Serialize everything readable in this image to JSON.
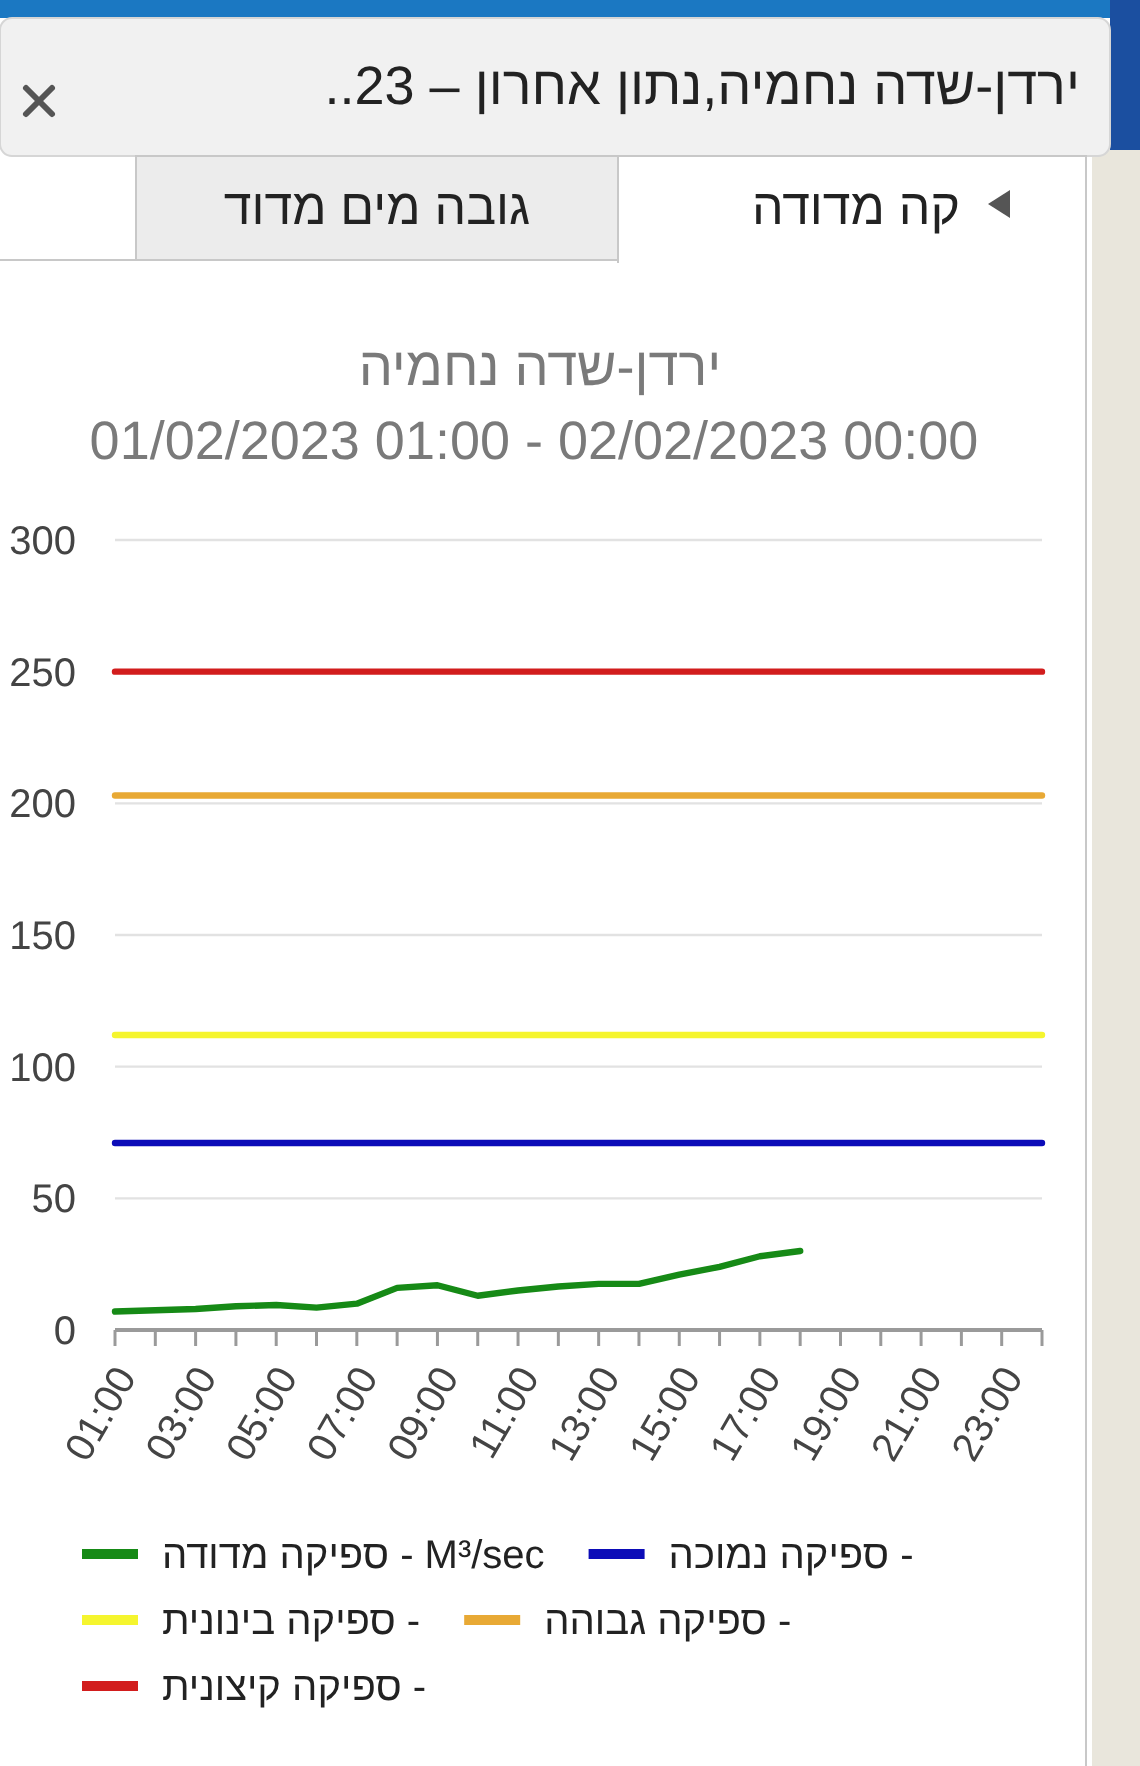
{
  "chart_data": {
    "type": "line",
    "title": "ירדן-שדה נחמיה",
    "subtitle": "01/02/2023 01:00 - 02/02/2023 00:00",
    "annotations": [
      "ירדן-שדה נחמיה,נתון אחרון – 23..",
      "קה מדודה",
      "גובה מים מדוד"
    ],
    "x": [
      1,
      2,
      3,
      4,
      5,
      6,
      7,
      8,
      9,
      10,
      11,
      12,
      13,
      14,
      15,
      16,
      17,
      18,
      19,
      20,
      21,
      22,
      23,
      24
    ],
    "xlim": [
      1,
      24
    ],
    "xticks": [
      {
        "value": 1,
        "label": "01:00"
      },
      {
        "value": 2,
        "label": null
      },
      {
        "value": 3,
        "label": "03:00"
      },
      {
        "value": 4,
        "label": null
      },
      {
        "value": 5,
        "label": "05:00"
      },
      {
        "value": 6,
        "label": null
      },
      {
        "value": 7,
        "label": "07:00"
      },
      {
        "value": 8,
        "label": null
      },
      {
        "value": 9,
        "label": "09:00"
      },
      {
        "value": 10,
        "label": null
      },
      {
        "value": 11,
        "label": "11:00"
      },
      {
        "value": 12,
        "label": null
      },
      {
        "value": 13,
        "label": "13:00"
      },
      {
        "value": 14,
        "label": null
      },
      {
        "value": 15,
        "label": "15:00"
      },
      {
        "value": 16,
        "label": null
      },
      {
        "value": 17,
        "label": "17:00"
      },
      {
        "value": 18,
        "label": null
      },
      {
        "value": 19,
        "label": "19:00"
      },
      {
        "value": 20,
        "label": null
      },
      {
        "value": 21,
        "label": "21:00"
      },
      {
        "value": 22,
        "label": null
      },
      {
        "value": 23,
        "label": "23:00"
      },
      {
        "value": 24,
        "label": null
      }
    ],
    "ylim": [
      0,
      300
    ],
    "yticks": [
      0,
      50,
      100,
      150,
      200,
      250,
      300
    ],
    "grid": "y",
    "legend": "bottom",
    "series": [
      {
        "name": "ספיקה מדודה - M³/sec",
        "color": "#168a16",
        "values": [
          7,
          7.5,
          8,
          9,
          9.5,
          8.5,
          10,
          16,
          17,
          13,
          15,
          16.5,
          17.5,
          17.5,
          21,
          24,
          28,
          30,
          null,
          null,
          null,
          null,
          null,
          null
        ]
      },
      {
        "name": "ספיקה נמוכה -",
        "color": "#0c0cb8",
        "values": [
          71,
          71,
          71,
          71,
          71,
          71,
          71,
          71,
          71,
          71,
          71,
          71,
          71,
          71,
          71,
          71,
          71,
          71,
          71,
          71,
          71,
          71,
          71,
          71
        ]
      },
      {
        "name": "ספיקה בינונית -",
        "color": "#f5f52e",
        "values": [
          112,
          112,
          112,
          112,
          112,
          112,
          112,
          112,
          112,
          112,
          112,
          112,
          112,
          112,
          112,
          112,
          112,
          112,
          112,
          112,
          112,
          112,
          112,
          112
        ]
      },
      {
        "name": "ספיקה גבוהה -",
        "color": "#e8a935",
        "values": [
          203,
          203,
          203,
          203,
          203,
          203,
          203,
          203,
          203,
          203,
          203,
          203,
          203,
          203,
          203,
          203,
          203,
          203,
          203,
          203,
          203,
          203,
          203,
          203
        ]
      },
      {
        "name": "ספיקה קיצונית -",
        "color": "#d21d1d",
        "values": [
          250,
          250,
          250,
          250,
          250,
          250,
          250,
          250,
          250,
          250,
          250,
          250,
          250,
          250,
          250,
          250,
          250,
          250,
          250,
          250,
          250,
          250,
          250,
          250
        ]
      }
    ]
  }
}
